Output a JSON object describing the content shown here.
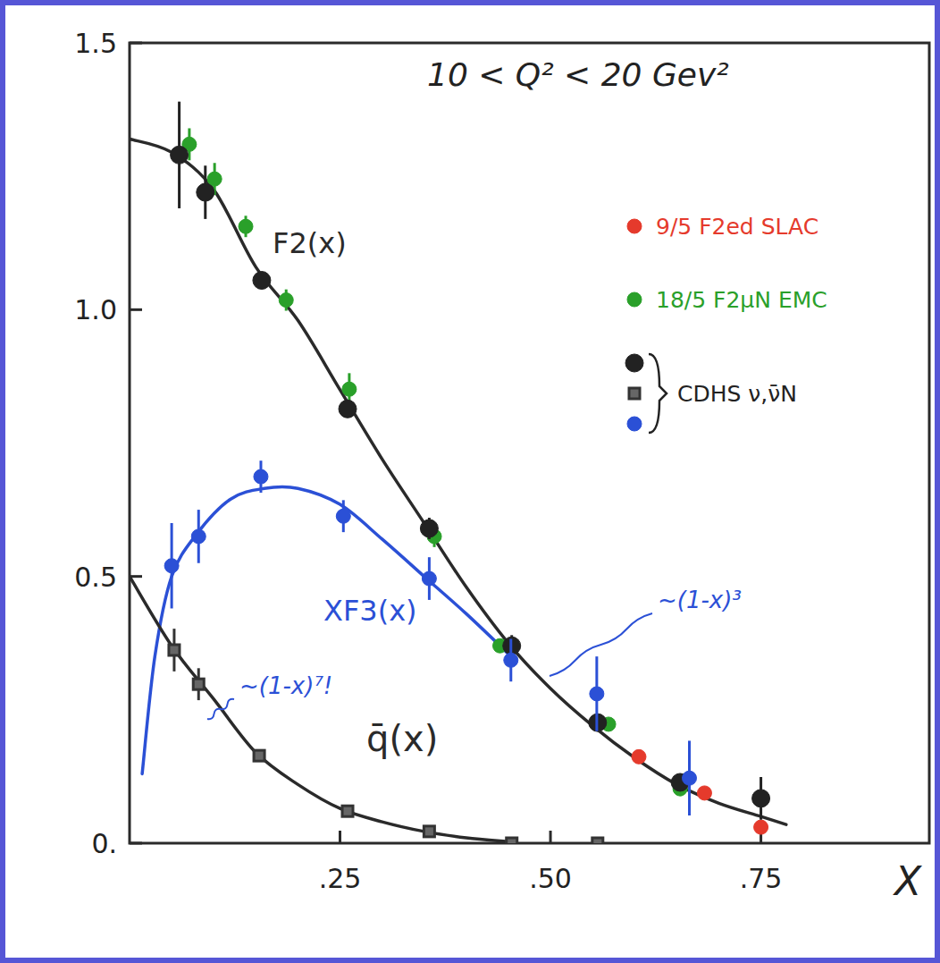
{
  "chart_data": {
    "type": "scatter",
    "title": "10 < Q² < 20 Gev²",
    "x_label": "X",
    "xlim": [
      0,
      0.95
    ],
    "ylim": [
      0,
      1.5
    ],
    "xticks": [
      {
        "value": 0.25,
        "label": ".25"
      },
      {
        "value": 0.5,
        "label": ".50"
      },
      {
        "value": 0.75,
        "label": ".75"
      }
    ],
    "yticks": [
      {
        "value": 0,
        "label": "0."
      },
      {
        "value": 0.5,
        "label": "0.5"
      },
      {
        "value": 1,
        "label": "1.0"
      },
      {
        "value": 1.5,
        "label": "1.5"
      }
    ],
    "grid": false,
    "legend": "upper right",
    "series": [
      {
        "name": "9/5 F2ed SLAC",
        "type": "scatter",
        "marker": "circle",
        "color": "#e53a2c",
        "x": [
          0.605,
          0.683,
          0.75
        ],
        "values": [
          0.162,
          0.094,
          0.03
        ],
        "errors": [
          null,
          null,
          null
        ]
      },
      {
        "name": "18/5 F2μN EMC",
        "type": "scatter",
        "marker": "circle",
        "color": "#2aa02a",
        "x": [
          0.071,
          0.101,
          0.138,
          0.186,
          0.261,
          0.362,
          0.44,
          0.569,
          0.654
        ],
        "values": [
          1.31,
          1.245,
          1.156,
          1.018,
          0.851,
          0.575,
          0.37,
          0.223,
          0.102
        ],
        "errors": [
          0.03,
          0.03,
          0.02,
          0.02,
          0.03,
          0.02,
          0.01,
          0.01,
          0.01
        ]
      },
      {
        "name": "CDHS ν,ν̄N",
        "type": "scatter",
        "marker": "circle",
        "color": "#222222",
        "x": [
          0.059,
          0.09,
          0.157,
          0.259,
          0.356,
          0.454,
          0.556,
          0.654,
          0.75
        ],
        "values": [
          1.29,
          1.22,
          1.055,
          0.814,
          0.59,
          0.37,
          0.226,
          0.114,
          0.084
        ],
        "errors": [
          0.1,
          0.05,
          0.01,
          0.01,
          0.02,
          0.02,
          0.01,
          0.01,
          0.04
        ]
      },
      {
        "type": "scatter",
        "marker": "square",
        "color": "#333333",
        "x": [
          0.053,
          0.082,
          0.154,
          0.259,
          0.356,
          0.454,
          0.556
        ],
        "values": [
          0.362,
          0.298,
          0.164,
          0.06,
          0.022,
          0.0,
          0.0
        ],
        "errors": [
          0.04,
          0.03,
          0.01,
          null,
          null,
          null,
          null
        ]
      },
      {
        "type": "scatter",
        "marker": "circle",
        "color": "#2b50d6",
        "x": [
          0.05,
          0.082,
          0.156,
          0.254,
          0.356,
          0.453,
          0.555,
          0.665
        ],
        "values": [
          0.52,
          0.575,
          0.687,
          0.613,
          0.496,
          0.343,
          0.28,
          0.122
        ],
        "errors": [
          0.08,
          0.05,
          0.03,
          0.03,
          0.04,
          0.04,
          0.07,
          0.07
        ]
      },
      {
        "name": "F2(x)",
        "type": "line",
        "line_style": "solid",
        "color": "#2a2a2a",
        "x": [
          0,
          0.05,
          0.1,
          0.15,
          0.2,
          0.25,
          0.3,
          0.35,
          0.4,
          0.45,
          0.5,
          0.55,
          0.6,
          0.65,
          0.7,
          0.75,
          0.78
        ],
        "values": [
          1.32,
          1.295,
          1.225,
          1.08,
          0.98,
          0.85,
          0.72,
          0.6,
          0.48,
          0.375,
          0.29,
          0.22,
          0.16,
          0.11,
          0.075,
          0.05,
          0.035
        ]
      },
      {
        "name": "XF3(x)",
        "type": "line",
        "line_style": "solid",
        "color": "#2b50d6",
        "x": [
          0.015,
          0.03,
          0.05,
          0.08,
          0.12,
          0.16,
          0.2,
          0.25,
          0.3,
          0.35,
          0.4,
          0.45
        ],
        "values": [
          0.13,
          0.35,
          0.5,
          0.58,
          0.645,
          0.665,
          0.665,
          0.635,
          0.57,
          0.5,
          0.43,
          0.355
        ]
      },
      {
        "name": "q̄(x)",
        "type": "line",
        "line_style": "solid",
        "color": "#2a2a2a",
        "x": [
          0,
          0.05,
          0.1,
          0.15,
          0.2,
          0.25,
          0.3,
          0.35,
          0.4,
          0.45
        ],
        "values": [
          0.5,
          0.37,
          0.27,
          0.17,
          0.11,
          0.065,
          0.04,
          0.022,
          0.01,
          0.003
        ]
      }
    ],
    "annotations": [
      {
        "text": "~(1-x)⁷!",
        "color": "#2b50d6"
      },
      {
        "text": "~(1-x)³",
        "color": "#2b50d6"
      }
    ]
  }
}
